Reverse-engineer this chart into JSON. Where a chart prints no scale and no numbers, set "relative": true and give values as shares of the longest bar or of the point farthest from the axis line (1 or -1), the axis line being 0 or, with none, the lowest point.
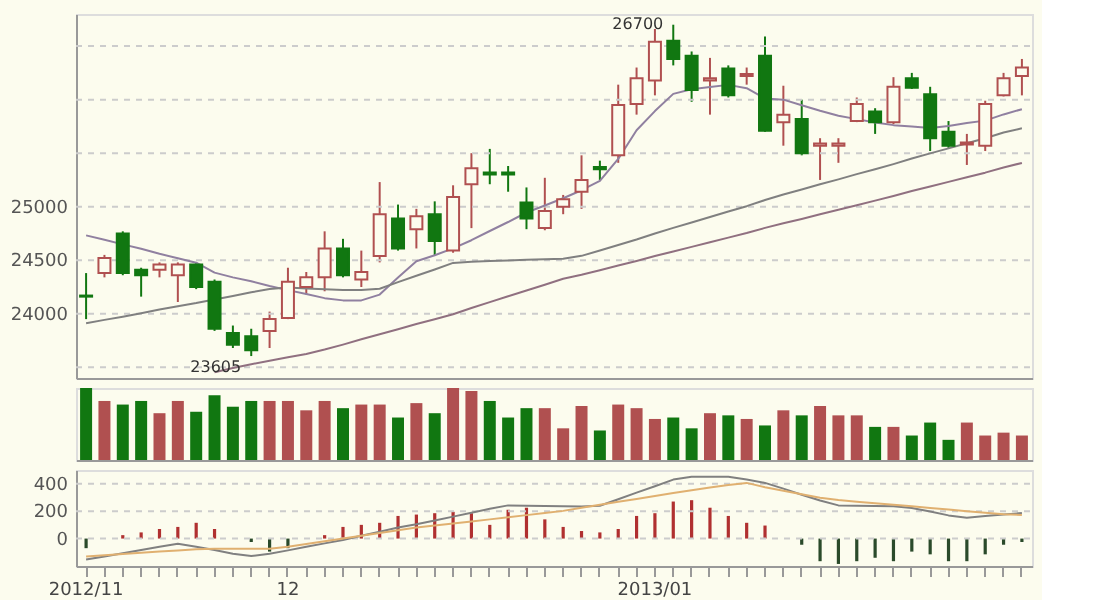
{
  "chart_data": [
    {
      "type": "candlestick",
      "tick_labels": "y",
      "grid": "y",
      "ylim": [
        23400,
        26800
      ],
      "yticks": [
        {
          "value": 23500,
          "label": null
        },
        24000,
        24500,
        25000,
        {
          "value": 25500,
          "label": null
        },
        {
          "value": 26000,
          "label": null
        },
        {
          "value": 26500,
          "label": null
        }
      ],
      "categories": [
        null,
        null,
        null,
        null,
        null,
        null,
        null,
        null,
        null,
        null,
        null,
        null,
        null,
        null,
        null,
        null,
        null,
        null,
        null,
        null,
        null,
        null,
        null,
        null,
        null,
        null,
        null,
        null,
        null,
        null,
        null,
        null,
        null,
        null,
        null,
        null,
        null,
        null,
        null,
        null,
        null,
        null,
        null,
        null,
        null,
        null,
        null,
        null,
        null,
        null,
        null,
        null
      ],
      "ohlc": [
        [
          24170,
          24380,
          23950,
          24160
        ],
        [
          24380,
          24550,
          24340,
          24520
        ],
        [
          24750,
          24770,
          24360,
          24380
        ],
        [
          24410,
          24430,
          24160,
          24360
        ],
        [
          24410,
          24480,
          24340,
          24460
        ],
        [
          24360,
          24480,
          24110,
          24460
        ],
        [
          24460,
          24480,
          24230,
          24250
        ],
        [
          24300,
          24320,
          23840,
          23860
        ],
        [
          23820,
          23890,
          23680,
          23710
        ],
        [
          23790,
          23860,
          23605,
          23660
        ],
        [
          23840,
          24020,
          23680,
          23950
        ],
        [
          23960,
          24430,
          23950,
          24300
        ],
        [
          24250,
          24390,
          24180,
          24340
        ],
        [
          24340,
          24770,
          24210,
          24610
        ],
        [
          24610,
          24700,
          24340,
          24360
        ],
        [
          24320,
          24590,
          24250,
          24390
        ],
        [
          24540,
          25230,
          24480,
          24930
        ],
        [
          24890,
          25020,
          24590,
          24610
        ],
        [
          24790,
          24980,
          24610,
          24910
        ],
        [
          24930,
          25050,
          24540,
          24680
        ],
        [
          24590,
          25200,
          24570,
          25090
        ],
        [
          25210,
          25500,
          24800,
          25360
        ],
        [
          25320,
          25540,
          25210,
          25300
        ],
        [
          25320,
          25380,
          25140,
          25300
        ],
        [
          25040,
          25180,
          24790,
          24890
        ],
        [
          24800,
          25270,
          24780,
          24960
        ],
        [
          25000,
          25110,
          24930,
          25070
        ],
        [
          25140,
          25480,
          24980,
          25250
        ],
        [
          25370,
          25430,
          25250,
          25350
        ],
        [
          25480,
          26140,
          25410,
          25950
        ],
        [
          25960,
          26300,
          25860,
          26200
        ],
        [
          26180,
          26660,
          26040,
          26540
        ],
        [
          26550,
          26700,
          26320,
          26380
        ],
        [
          26410,
          26450,
          25980,
          26090
        ],
        [
          26180,
          26390,
          25860,
          26200
        ],
        [
          26290,
          26320,
          26020,
          26040
        ],
        [
          26220,
          26300,
          26140,
          26240
        ],
        [
          26410,
          26590,
          25700,
          25710
        ],
        [
          25790,
          26130,
          25570,
          25860
        ],
        [
          25820,
          26000,
          25480,
          25500
        ],
        [
          25570,
          25640,
          25250,
          25590
        ],
        [
          25570,
          25640,
          25410,
          25590
        ],
        [
          25800,
          26020,
          25790,
          25960
        ],
        [
          25890,
          25920,
          25680,
          25790
        ],
        [
          25790,
          26210,
          25770,
          26120
        ],
        [
          26200,
          26250,
          26100,
          26110
        ],
        [
          26050,
          26120,
          25520,
          25640
        ],
        [
          25700,
          25800,
          25550,
          25570
        ],
        [
          25580,
          25680,
          25390,
          25600
        ],
        [
          25570,
          25990,
          25520,
          25960
        ],
        [
          26040,
          26250,
          26030,
          26200
        ],
        [
          26220,
          26380,
          26040,
          26300
        ]
      ],
      "colors": [
        "#117711",
        "#b05050",
        "#117711",
        "#117711",
        "#b05050",
        "#b05050",
        "#117711",
        "#117711",
        "#117711",
        "#117711",
        "#b05050",
        "#b05050",
        "#b05050",
        "#b05050",
        "#117711",
        "#b05050",
        "#b05050",
        "#117711",
        "#b05050",
        "#117711",
        "#b05050",
        "#b05050",
        "#117711",
        "#117711",
        "#117711",
        "#b05050",
        "#b05050",
        "#b05050",
        "#117711",
        "#b05050",
        "#b05050",
        "#b05050",
        "#117711",
        "#117711",
        "#b05050",
        "#117711",
        "#b05050",
        "#117711",
        "#b05050",
        "#117711",
        "#b05050",
        "#b05050",
        "#b05050",
        "#117711",
        "#b05050",
        "#117711",
        "#117711",
        "#117711",
        "#b05050",
        "#b05050",
        "#b05050",
        "#b05050"
      ],
      "series": [
        {
          "type": "line",
          "color": "#9080a0",
          "values": [
            24732,
            24691,
            24648,
            24607,
            24560,
            24518,
            24477,
            24384,
            24340,
            24304,
            24259,
            24221,
            24184,
            24146,
            24125,
            24125,
            24179,
            24339,
            24490,
            24546,
            24611,
            24687,
            24773,
            24857,
            24946,
            25011,
            25079,
            25154,
            25241,
            25446,
            25714,
            25893,
            26054,
            26097,
            26118,
            26138,
            26107,
            26011,
            26000,
            25948,
            25896,
            25850,
            25818,
            25786,
            25762,
            25750,
            25736,
            25754,
            25782,
            25804,
            25862,
            25911
          ]
        },
        {
          "type": "line",
          "color": "#808080",
          "values": [
            23911,
            23943,
            23973,
            24005,
            24039,
            24070,
            24100,
            24134,
            24166,
            24200,
            24232,
            24246,
            24236,
            24229,
            24223,
            24221,
            24234,
            24295,
            24355,
            24414,
            24475,
            24487,
            24493,
            24498,
            24504,
            24509,
            24514,
            24541,
            24591,
            24643,
            24693,
            24750,
            24802,
            24852,
            24904,
            24955,
            25005,
            25062,
            25114,
            25161,
            25209,
            25255,
            25304,
            25350,
            25398,
            25450,
            25498,
            25545,
            25593,
            25639,
            25693,
            25732
          ]
        },
        {
          "type": "line",
          "color": "#907080",
          "values": [
            null,
            null,
            null,
            null,
            null,
            null,
            null,
            23454,
            23493,
            23529,
            23561,
            23593,
            23625,
            23666,
            23712,
            23762,
            23808,
            23855,
            23904,
            23948,
            23995,
            24054,
            24109,
            24163,
            24218,
            24271,
            24327,
            24364,
            24407,
            24450,
            24493,
            24539,
            24582,
            24625,
            24668,
            24711,
            24754,
            24802,
            24845,
            24886,
            24929,
            24971,
            25014,
            25057,
            25100,
            25146,
            25189,
            25232,
            25275,
            25318,
            25366,
            25409
          ]
        }
      ],
      "annotations": [
        "26700",
        "23605"
      ]
    },
    {
      "type": "bar",
      "relative": true,
      "tick_labels": false,
      "categories": [
        null,
        null,
        null,
        null,
        null,
        null,
        null,
        null,
        null,
        null,
        null,
        null,
        null,
        null,
        null,
        null,
        null,
        null,
        null,
        null,
        null,
        null,
        null,
        null,
        null,
        null,
        null,
        null,
        null,
        null,
        null,
        null,
        null,
        null,
        null,
        null,
        null,
        null,
        null,
        null,
        null,
        null,
        null,
        null,
        null,
        null,
        null,
        null,
        null,
        null,
        null,
        null
      ],
      "values": [
        1,
        0.82,
        0.77,
        0.82,
        0.65,
        0.82,
        0.67,
        0.9,
        0.74,
        0.82,
        0.82,
        0.82,
        0.69,
        0.82,
        0.72,
        0.77,
        0.77,
        0.59,
        0.79,
        0.65,
        1,
        0.96,
        0.82,
        0.59,
        0.72,
        0.72,
        0.44,
        0.75,
        0.41,
        0.77,
        0.72,
        0.57,
        0.59,
        0.44,
        0.65,
        0.62,
        0.57,
        0.48,
        0.69,
        0.62,
        0.75,
        0.62,
        0.62,
        0.46,
        0.46,
        0.34,
        0.52,
        0.28,
        0.52,
        0.34,
        0.38,
        0.34
      ],
      "colors": [
        "#117711",
        "#b05050",
        "#117711",
        "#117711",
        "#b05050",
        "#b05050",
        "#117711",
        "#117711",
        "#117711",
        "#117711",
        "#b05050",
        "#b05050",
        "#b05050",
        "#b05050",
        "#117711",
        "#b05050",
        "#b05050",
        "#117711",
        "#b05050",
        "#117711",
        "#b05050",
        "#b05050",
        "#117711",
        "#117711",
        "#117711",
        "#b05050",
        "#b05050",
        "#b05050",
        "#117711",
        "#b05050",
        "#b05050",
        "#b05050",
        "#117711",
        "#117711",
        "#b05050",
        "#117711",
        "#b05050",
        "#117711",
        "#b05050",
        "#117711",
        "#b05050",
        "#b05050",
        "#b05050",
        "#117711",
        "#b05050",
        "#117711",
        "#117711",
        "#117711",
        "#b05050",
        "#b05050",
        "#b05050",
        "#b05050"
      ]
    },
    {
      "type": "bar",
      "grid": "y",
      "ylim": [
        -200,
        500
      ],
      "yticks": [
        0,
        200,
        400
      ],
      "categories": [
        "2012/11",
        null,
        null,
        null,
        null,
        null,
        null,
        null,
        null,
        null,
        null,
        "12",
        null,
        null,
        null,
        null,
        null,
        null,
        null,
        null,
        null,
        null,
        null,
        null,
        null,
        null,
        null,
        null,
        null,
        null,
        null,
        "2013/01",
        null,
        null,
        null,
        null,
        null,
        null,
        null,
        null,
        null,
        null,
        null,
        null,
        null,
        null,
        null,
        null,
        null,
        null,
        null,
        null
      ],
      "series": [
        {
          "type": "bar",
          "values": [
            -70,
            null,
            25,
            45,
            70,
            85,
            115,
            70,
            null,
            -25,
            -95,
            -70,
            null,
            25,
            85,
            100,
            115,
            165,
            175,
            185,
            195,
            185,
            100,
            210,
            225,
            140,
            85,
            55,
            45,
            70,
            165,
            185,
            270,
            280,
            225,
            165,
            115,
            95,
            null,
            -45,
            -165,
            -185,
            -165,
            -140,
            -165,
            -95,
            -115,
            -165,
            -165,
            -115,
            -45,
            -25
          ],
          "colors": [
            "#2a4a2a",
            "#2a4a2a",
            "#b03030",
            "#b03030",
            "#b03030",
            "#b03030",
            "#b03030",
            "#b03030",
            "#b03030",
            "#2a4a2a",
            "#2a4a2a",
            "#2a4a2a",
            "#b03030",
            "#b03030",
            "#b03030",
            "#b03030",
            "#b03030",
            "#b03030",
            "#b03030",
            "#b03030",
            "#b03030",
            "#b03030",
            "#b03030",
            "#b03030",
            "#b03030",
            "#b03030",
            "#b03030",
            "#b03030",
            "#b03030",
            "#b03030",
            "#b03030",
            "#b03030",
            "#b03030",
            "#b03030",
            "#b03030",
            "#b03030",
            "#b03030",
            "#b03030",
            "#b03030",
            "#2a4a2a",
            "#2a4a2a",
            "#2a4a2a",
            "#2a4a2a",
            "#2a4a2a",
            "#2a4a2a",
            "#2a4a2a",
            "#2a4a2a",
            "#2a4a2a",
            "#2a4a2a",
            "#2a4a2a",
            "#2a4a2a",
            "#2a4a2a"
          ]
        },
        {
          "type": "line",
          "color": "#808080",
          "values": [
            -153,
            -130,
            -107,
            -83,
            -60,
            -38,
            -60,
            -83,
            -110,
            -127,
            -110,
            -86,
            -59,
            -35,
            -10,
            20,
            50,
            80,
            104,
            132,
            160,
            188,
            217,
            242,
            240,
            238,
            236,
            234,
            239,
            287,
            335,
            382,
            430,
            451,
            451,
            451,
            430,
            406,
            364,
            320,
            278,
            242,
            239,
            237,
            235,
            223,
            197,
            169,
            152,
            164,
            175,
            186
          ]
        },
        {
          "type": "line",
          "color": "#e0b070",
          "values": [
            -130,
            -121,
            -113,
            -104,
            -95,
            -87,
            -78,
            -74,
            -74,
            -74,
            -74,
            -60,
            -40,
            -20,
            0,
            20,
            41,
            61,
            80,
            95,
            110,
            125,
            140,
            156,
            171,
            186,
            202,
            225,
            246,
            268,
            289,
            310,
            332,
            353,
            373,
            390,
            406,
            374,
            349,
            323,
            297,
            281,
            269,
            258,
            246,
            235,
            223,
            212,
            200,
            189,
            177,
            172
          ]
        }
      ]
    }
  ]
}
